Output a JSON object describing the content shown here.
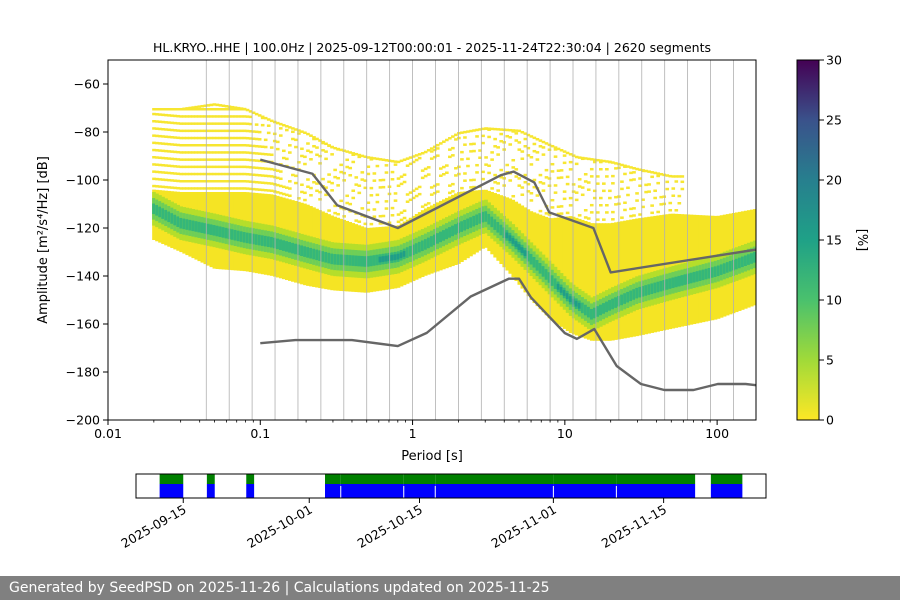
{
  "chart_data": {
    "type": "heatmap",
    "title": "HL.KRYO..HHE | 100.0Hz | 2025-09-12T00:00:01 - 2025-11-24T22:30:04 | 2620 segments",
    "xlabel": "Period [s]",
    "ylabel": "Amplitude [m²/s⁴/Hz] [dB]",
    "x_scale": "log",
    "xlim": [
      0.01,
      180
    ],
    "ylim": [
      -200,
      -50
    ],
    "x_ticks": [
      "0.01",
      "0.1",
      "1",
      "10",
      "100"
    ],
    "y_ticks": [
      "−200",
      "−180",
      "−160",
      "−140",
      "−120",
      "−100",
      "−80",
      "−60"
    ],
    "grid": "vertical lines at each octave center frequency",
    "colorbar": {
      "label": "[%]",
      "range": [
        0,
        30
      ],
      "ticks": [
        "0",
        "5",
        "10",
        "15",
        "20",
        "25",
        "30"
      ],
      "colormap": "viridis (reversed)"
    },
    "psd_mode_curve": {
      "period": [
        0.02,
        0.03,
        0.05,
        0.08,
        0.12,
        0.2,
        0.3,
        0.5,
        0.8,
        1.2,
        2,
        3,
        4.5,
        6,
        8,
        11,
        15,
        20,
        30,
        50,
        100,
        180
      ],
      "db": [
        -112,
        -118,
        -121,
        -124,
        -126,
        -130,
        -133,
        -134,
        -132,
        -127,
        -120,
        -115,
        -125,
        -133,
        -141,
        -150,
        -156,
        -152,
        -147,
        -143,
        -138,
        -132
      ]
    },
    "psd_spread_upper": {
      "period": [
        0.02,
        0.03,
        0.05,
        0.08,
        0.12,
        0.2,
        0.3,
        0.5,
        0.8,
        1.2,
        2,
        3,
        4.5,
        6,
        8,
        11,
        15,
        20,
        30,
        50,
        100,
        180
      ],
      "db": [
        -104,
        -105,
        -105,
        -105,
        -106,
        -110,
        -115,
        -120,
        -119,
        -112,
        -105,
        -104,
        -108,
        -113,
        -116,
        -115,
        -118,
        -118,
        -116,
        -114,
        -115,
        -112
      ]
    },
    "psd_spread_lower": {
      "period": [
        0.02,
        0.03,
        0.05,
        0.08,
        0.12,
        0.2,
        0.3,
        0.5,
        0.8,
        1.2,
        2,
        3,
        4.5,
        6,
        8,
        11,
        15,
        20,
        30,
        50,
        100,
        180
      ],
      "db": [
        -125,
        -130,
        -137,
        -138,
        -140,
        -144,
        -146,
        -147,
        -145,
        -140,
        -135,
        -128,
        -140,
        -150,
        -158,
        -164,
        -167,
        -167,
        -165,
        -162,
        -158,
        -152
      ]
    },
    "upper_noise_envelope": {
      "period": [
        0.02,
        0.03,
        0.05,
        0.08,
        0.12,
        0.2,
        0.3,
        0.5,
        0.8,
        1.2,
        2,
        3,
        5,
        8,
        12,
        20,
        30,
        50
      ],
      "db": [
        -70,
        -70,
        -68,
        -70,
        -75,
        -80,
        -86,
        -90,
        -92,
        -88,
        -80,
        -78,
        -79,
        -85,
        -90,
        -92,
        -95,
        -98
      ]
    },
    "nhnm": {
      "period": [
        0.1,
        0.22,
        0.32,
        0.8,
        3.8,
        4.6,
        6.3,
        7.9,
        15.4,
        20,
        180
      ],
      "db": [
        -91.5,
        -97.4,
        -110.5,
        -120,
        -98,
        -96.5,
        -101,
        -113.5,
        -120,
        -138.5,
        -129
      ]
    },
    "nlnm": {
      "period": [
        0.1,
        0.17,
        0.4,
        0.8,
        1.24,
        2.4,
        4.3,
        5,
        6,
        10,
        12,
        15.6,
        21.9,
        31.6,
        45,
        70,
        101,
        154,
        180
      ],
      "db": [
        -168,
        -166.7,
        -166.7,
        -169.2,
        -163.7,
        -148.6,
        -141.1,
        -141.1,
        -149,
        -163.8,
        -166.2,
        -162.1,
        -177.5,
        -185,
        -187.5,
        -187.5,
        -185,
        -185,
        -185.5
      ]
    },
    "availability": {
      "date_ticks": [
        "2025-09-15",
        "2025-10-01",
        "2025-10-15",
        "2025-11-01",
        "2025-11-15"
      ],
      "data_segments": [
        [
          "2025-09-12",
          "2025-09-15"
        ],
        [
          "2025-09-18",
          "2025-09-19"
        ],
        [
          "2025-09-23",
          "2025-09-24"
        ],
        [
          "2025-10-03",
          "2025-10-05"
        ],
        [
          "2025-10-05",
          "2025-10-13"
        ],
        [
          "2025-10-13",
          "2025-10-17"
        ],
        [
          "2025-10-17",
          "2025-11-01"
        ],
        [
          "2025-11-01",
          "2025-11-09"
        ],
        [
          "2025-11-09",
          "2025-11-19"
        ],
        [
          "2025-11-21",
          "2025-11-25"
        ]
      ],
      "colors": {
        "available": "#0000ff",
        "psd_computed": "#008000"
      }
    }
  },
  "footer": {
    "text": "Generated by SeedPSD on 2025-11-26 | Calculations updated on 2025-11-25"
  },
  "colors": {
    "nm_line": "#666666",
    "grid": "#b0b0b0",
    "footer_bg": "#808080"
  }
}
